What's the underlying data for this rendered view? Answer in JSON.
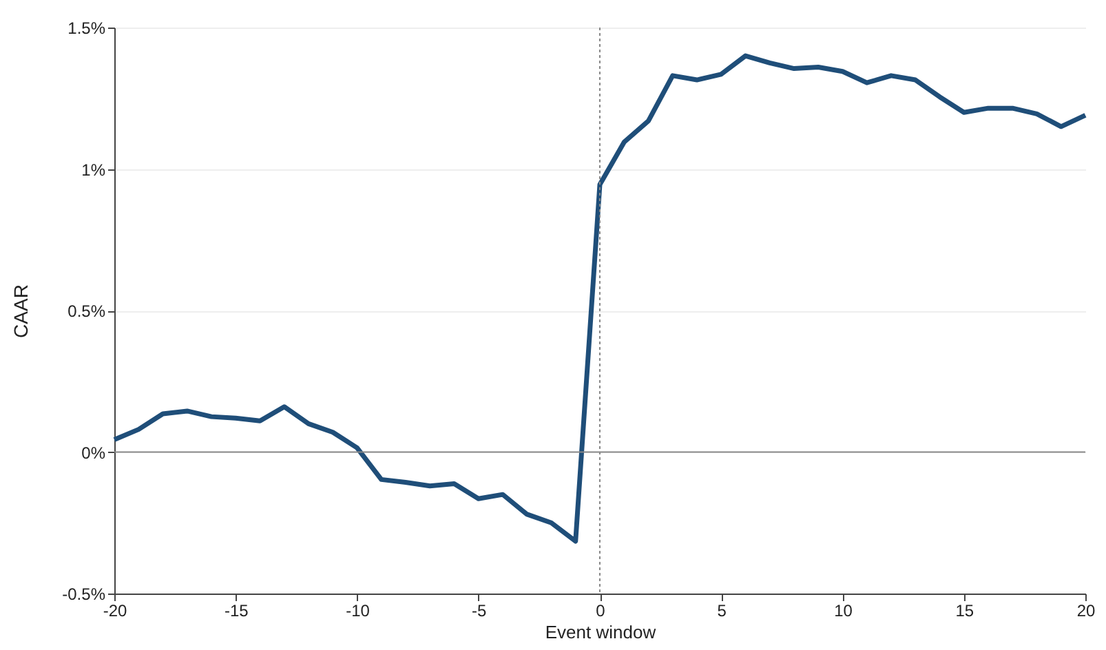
{
  "chart_data": {
    "type": "line",
    "xlabel": "Event window",
    "ylabel": "CAAR",
    "x": [
      -20,
      -19,
      -18,
      -17,
      -16,
      -15,
      -14,
      -13,
      -12,
      -11,
      -10,
      -9,
      -8,
      -7,
      -6,
      -5,
      -4,
      -3,
      -2,
      -1,
      0,
      1,
      2,
      3,
      4,
      5,
      6,
      7,
      8,
      9,
      10,
      11,
      12,
      13,
      14,
      15,
      16,
      17,
      18,
      19,
      20
    ],
    "series": [
      {
        "color": "#1f4e79",
        "values": [
          0.044,
          0.08,
          0.135,
          0.145,
          0.125,
          0.12,
          0.11,
          0.16,
          0.1,
          0.07,
          0.015,
          -0.097,
          -0.107,
          -0.12,
          -0.112,
          -0.165,
          -0.15,
          -0.22,
          -0.25,
          -0.315,
          0.945,
          1.095,
          1.17,
          1.33,
          1.315,
          1.335,
          1.4,
          1.375,
          1.355,
          1.36,
          1.345,
          1.305,
          1.33,
          1.315,
          1.255,
          1.2,
          1.215,
          1.215,
          1.195,
          1.15,
          1.19
        ]
      }
    ],
    "xlim": [
      -20,
      20
    ],
    "xticks": [
      -20,
      -15,
      -10,
      -5,
      0,
      5,
      10,
      15,
      20
    ],
    "ylim": [
      -0.5,
      1.5
    ],
    "yticks": [
      {
        "value": -0.5,
        "label": "-0.5%"
      },
      {
        "value": 0,
        "label": "0%"
      },
      {
        "value": 0.5,
        "label": "0.5%"
      },
      {
        "value": 1,
        "label": "1%"
      },
      {
        "value": 1.5,
        "label": "1.5%"
      }
    ],
    "grid": "y",
    "marker": "none",
    "line_style": "solid",
    "ref_lines": [
      {
        "axis": "y",
        "value": 0,
        "color": "#888888",
        "line_style": "solid"
      },
      {
        "axis": "x",
        "value": 0,
        "color": "#888888",
        "line_style": "dotted"
      }
    ]
  }
}
